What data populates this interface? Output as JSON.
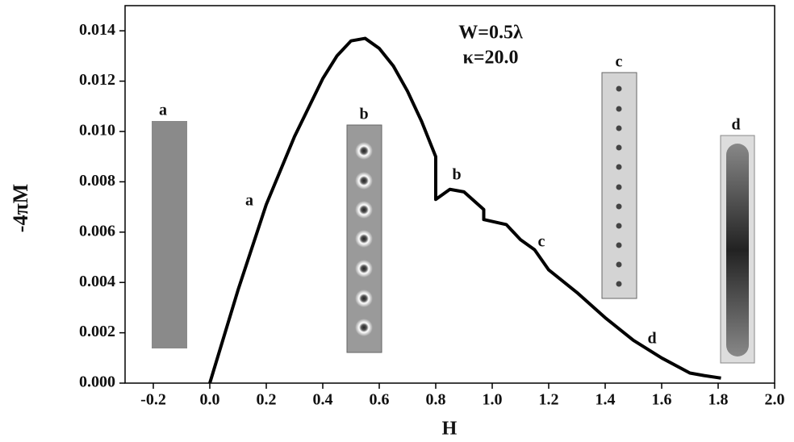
{
  "chart_data": {
    "type": "line",
    "x_label": "H",
    "y_label": "-4πM",
    "x": [
      0.0,
      0.1,
      0.2,
      0.3,
      0.4,
      0.45,
      0.5,
      0.55,
      0.6,
      0.65,
      0.7,
      0.75,
      0.8,
      0.8,
      0.85,
      0.9,
      0.95,
      0.97,
      0.97,
      1.05,
      1.1,
      1.15,
      1.2,
      1.3,
      1.4,
      1.5,
      1.6,
      1.7,
      1.75,
      1.81
    ],
    "series": [
      {
        "name": "-4πM",
        "color": "#000000",
        "values": [
          0.0,
          0.0037,
          0.0071,
          0.0098,
          0.0121,
          0.013,
          0.0136,
          0.0137,
          0.0133,
          0.0126,
          0.0116,
          0.0104,
          0.009,
          0.0073,
          0.0077,
          0.0076,
          0.0071,
          0.0069,
          0.0065,
          0.0063,
          0.0057,
          0.0053,
          0.0045,
          0.0036,
          0.0026,
          0.0017,
          0.001,
          0.0004,
          0.0003,
          0.0002
        ]
      }
    ],
    "xlim": [
      -0.3,
      2.0
    ],
    "xticks": [
      -0.2,
      {
        "value": 0,
        "label": "0.0"
      },
      0.2,
      0.4,
      0.6,
      0.8,
      {
        "value": 1,
        "label": "1.0"
      },
      1.2,
      1.4,
      1.6,
      1.8,
      {
        "value": 2,
        "label": "2.0"
      }
    ],
    "ylim": [
      0,
      0.015
    ],
    "yticks": [
      {
        "value": 0,
        "label": "0.000"
      },
      0.002,
      0.004,
      0.006,
      0.008,
      {
        "value": 0.01,
        "label": "0.010"
      },
      0.012,
      0.014
    ],
    "annotations": [
      "W=0.5λ",
      "κ=20.0",
      "a",
      "b",
      "c",
      "d"
    ],
    "inset_labels": [
      "a",
      "b",
      "c",
      "d"
    ]
  }
}
